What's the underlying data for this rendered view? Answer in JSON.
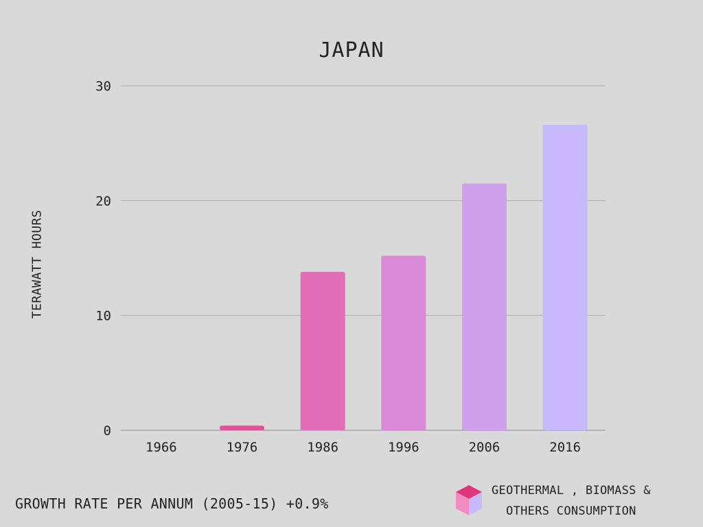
{
  "chart_data": {
    "type": "bar",
    "title": "JAPAN",
    "xlabel": "",
    "ylabel": "TERAWATT HOURS",
    "categories": [
      "1966",
      "1976",
      "1986",
      "1996",
      "2006",
      "2016"
    ],
    "values": [
      0,
      0.4,
      13.8,
      15.2,
      21.5,
      26.6
    ],
    "ylim": [
      0,
      30
    ],
    "yticks": [
      0,
      10,
      20,
      30
    ],
    "grid": true,
    "bar_colors": [
      "#e0559a",
      "#e0559a",
      "#e06fb8",
      "#d98bd9",
      "#cfa0ec",
      "#c8b8fc"
    ]
  },
  "footer": {
    "growth_text": "GROWTH RATE PER ANNUM (2005-15) +0.9%"
  },
  "legend": {
    "line1": "GEOTHERMAL , BIOMASS &",
    "line2": "OTHERS CONSUMPTION",
    "icon": "cube-icon",
    "icon_colors": [
      "#e0357a",
      "#f08cc0",
      "#c8b8fc"
    ]
  }
}
